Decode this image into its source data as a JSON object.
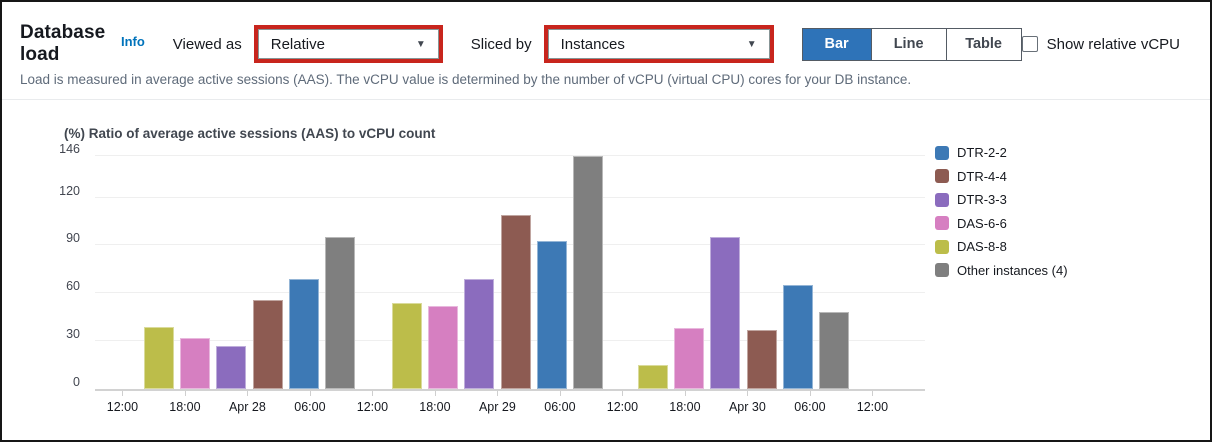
{
  "header": {
    "title": "Database load",
    "info_label": "Info",
    "viewed_as_label": "Viewed as",
    "viewed_as_value": "Relative",
    "sliced_by_label": "Sliced by",
    "sliced_by_value": "Instances",
    "toggle": {
      "bar": "Bar",
      "line": "Line",
      "table": "Table",
      "selected": "Bar"
    },
    "checkbox_label": "Show relative vCPU",
    "checkbox_checked": false,
    "description": "Load is measured in average active sessions (AAS). The vCPU value is determined by the number of vCPU (virtual CPU) cores for your DB instance.",
    "annotation_color": "#c8251d",
    "selected_button_color": "#2e73b8",
    "info_link_color": "#0073bb"
  },
  "chart_data": {
    "type": "bar",
    "title": "(%) Ratio of average active sessions (AAS) to vCPU count",
    "ylim": [
      0,
      146
    ],
    "yticks": [
      0,
      30,
      60,
      90,
      120,
      146
    ],
    "x_tick_labels": [
      "12:00",
      "18:00",
      "Apr 28",
      "06:00",
      "12:00",
      "18:00",
      "Apr 29",
      "06:00",
      "12:00",
      "18:00",
      "Apr 30",
      "06:00",
      "12:00"
    ],
    "groups": [
      "Apr 28",
      "Apr 29",
      "Apr 30"
    ],
    "series": [
      {
        "name": "DTR-2-2",
        "color": "#3d79b5",
        "values": [
          69,
          93,
          65
        ]
      },
      {
        "name": "DTR-4-4",
        "color": "#8d5b52",
        "values": [
          56,
          109,
          37
        ]
      },
      {
        "name": "DTR-3-3",
        "color": "#8b6cbe",
        "values": [
          27,
          69,
          95
        ]
      },
      {
        "name": "DAS-6-6",
        "color": "#d67fc1",
        "values": [
          32,
          52,
          38
        ]
      },
      {
        "name": "DAS-8-8",
        "color": "#bcbd4a",
        "values": [
          39,
          54,
          15
        ]
      },
      {
        "name": "Other instances (4)",
        "color": "#7f7f7f",
        "values": [
          95,
          146,
          48
        ]
      }
    ],
    "bar_order_within_group": [
      "DAS-8-8",
      "DAS-6-6",
      "DTR-3-3",
      "DTR-4-4",
      "DTR-2-2",
      "Other instances (4)"
    ],
    "legend_position": "right",
    "grid": true
  }
}
